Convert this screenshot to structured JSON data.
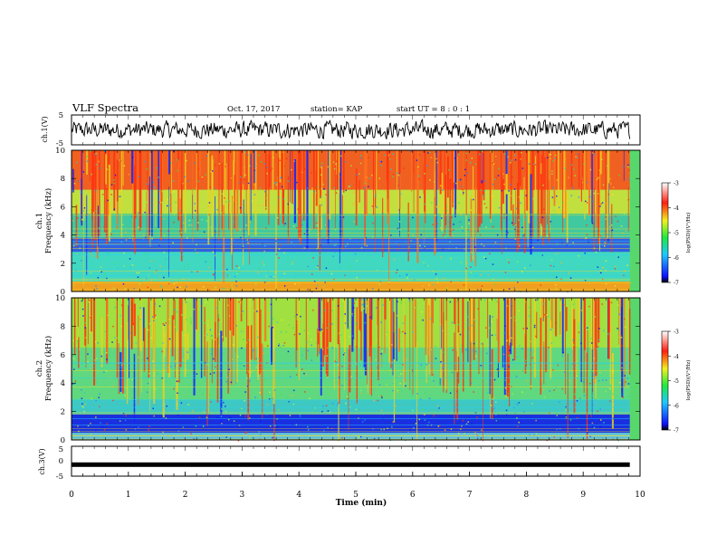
{
  "header": {
    "title": "VLF Spectra",
    "date": "Oct. 17, 2017",
    "station": "station= KAP",
    "start_ut": "start UT =  8 : 0 : 1"
  },
  "chart_data": [
    {
      "type": "line",
      "title": "",
      "ylabel": "ch.1(V)",
      "ylim": [
        -5,
        5
      ],
      "yticks": [
        5,
        -5
      ],
      "x_range_min": [
        0,
        10
      ],
      "trace_span_min": [
        0,
        9.82
      ],
      "description_free": true,
      "series": [
        {
          "values": []
        }
      ]
    },
    {
      "type": "heatmap",
      "ylabel_channel": "ch.1",
      "ylabel": "Frequency (kHz)",
      "ylim": [
        0,
        10
      ],
      "yticks": [
        0,
        2,
        4,
        6,
        8,
        10
      ],
      "colorbar": {
        "label": "log(PSD)(V²/Hz)",
        "range": [
          -7,
          -3
        ],
        "ticks": [
          -3,
          -4,
          -5,
          -6,
          -7
        ]
      }
    },
    {
      "type": "heatmap",
      "ylabel_channel": "ch.2",
      "ylabel": "Frequency (kHz)",
      "ylim": [
        0,
        10
      ],
      "yticks": [
        0,
        2,
        4,
        6,
        8,
        10
      ],
      "colorbar": {
        "label": "log(PSD)(V²/Hz)",
        "range": [
          -7,
          -3
        ],
        "ticks": [
          -3,
          -4,
          -5,
          -6,
          -7
        ]
      }
    },
    {
      "type": "line",
      "ylabel": "ch.3(V)",
      "ylim": [
        -5,
        5
      ],
      "yticks": [
        5,
        0,
        -5
      ],
      "series": [
        {
          "values": [
            -1,
            -1
          ]
        }
      ],
      "xlabel": "Time (min)",
      "xlim": [
        0,
        10
      ],
      "xticks": [
        0,
        1,
        2,
        3,
        4,
        5,
        6,
        7,
        8,
        9,
        10
      ]
    }
  ],
  "colors": {
    "axis": "#000000",
    "trace": "#000000"
  }
}
